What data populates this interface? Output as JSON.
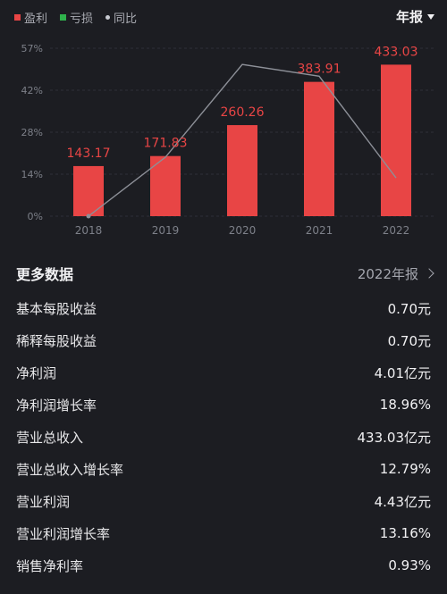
{
  "legend": {
    "profit": "盈利",
    "loss": "亏损",
    "yoy": "同比",
    "colors": {
      "profit": "#e84545",
      "loss": "#2fb24c",
      "yoy": "#c9cbd2"
    }
  },
  "period_selector": "年报",
  "chart_data": {
    "type": "bar",
    "categories": [
      "2018",
      "2019",
      "2020",
      "2021",
      "2022"
    ],
    "series": [
      {
        "name": "盈利",
        "values": [
          143.17,
          171.83,
          260.26,
          383.91,
          433.03
        ]
      },
      {
        "name": "同比",
        "values": [
          0,
          20,
          51.5,
          47.5,
          13
        ]
      }
    ],
    "value_labels": [
      "143.17",
      "171.83",
      "260.26",
      "383.91",
      "433.03"
    ],
    "y_ticks": [
      "0%",
      "14%",
      "28%",
      "42%",
      "57%"
    ],
    "ylim": [
      0,
      57
    ],
    "grid": true
  },
  "more_data": {
    "title": "更多数据",
    "link": "2022年报"
  },
  "metrics": [
    {
      "label": "基本每股收益",
      "value": "0.70元"
    },
    {
      "label": "稀释每股收益",
      "value": "0.70元"
    },
    {
      "label": "净利润",
      "value": "4.01亿元"
    },
    {
      "label": "净利润增长率",
      "value": "18.96%"
    },
    {
      "label": "营业总收入",
      "value": "433.03亿元"
    },
    {
      "label": "营业总收入增长率",
      "value": "12.79%"
    },
    {
      "label": "营业利润",
      "value": "4.43亿元"
    },
    {
      "label": "营业利润增长率",
      "value": "13.16%"
    },
    {
      "label": "销售净利率",
      "value": "0.93%"
    }
  ]
}
